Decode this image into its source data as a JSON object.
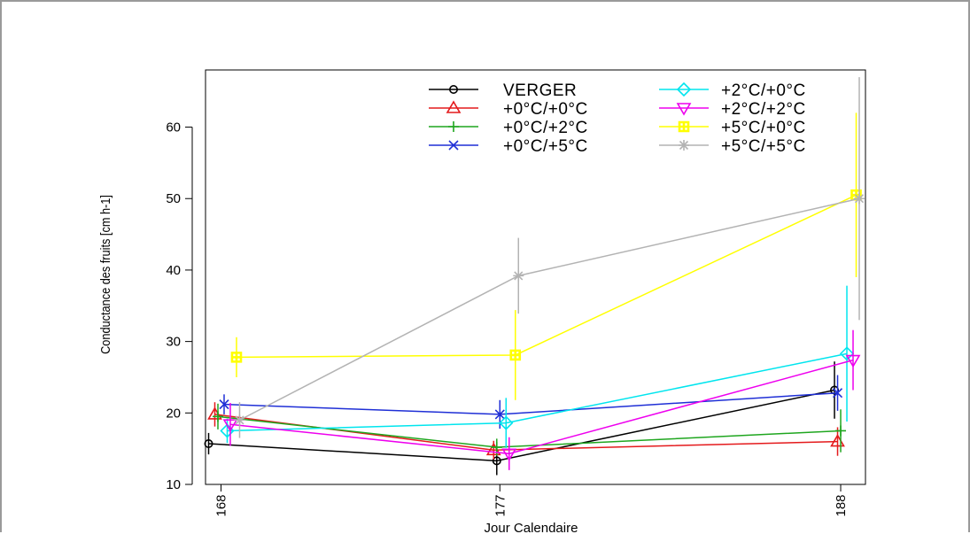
{
  "chart_data": {
    "type": "line",
    "title": "",
    "xlabel": "Jour Calendaire",
    "ylabel": "Conductance des fruits [cm h-1]",
    "x": [
      168,
      177,
      188
    ],
    "x_tick_labels": [
      "168",
      "177",
      "188"
    ],
    "y_ticks": [
      10,
      20,
      30,
      40,
      50,
      60
    ],
    "y_tick_labels": [
      "10",
      "20",
      "30",
      "40",
      "50",
      "60"
    ],
    "ylim": [
      10,
      68
    ],
    "xlim": [
      167.5,
      188.8
    ],
    "grid": false,
    "legend_position": "top-right",
    "series": [
      {
        "name": "VERGER",
        "color": "#000000",
        "marker": "circle",
        "x": [
          167.6,
          176.9,
          187.8
        ],
        "values": [
          15.7,
          13.3,
          23.2
        ],
        "errors": [
          1.5,
          2.0,
          4.0
        ]
      },
      {
        "name": "+0°C/+0°C",
        "color": "#e41a1c",
        "marker": "triangle-up",
        "x": [
          167.8,
          176.8,
          187.9
        ],
        "values": [
          19.8,
          14.8,
          16.0
        ],
        "errors": [
          1.7,
          1.3,
          2.0
        ]
      },
      {
        "name": "+0°C/+2°C",
        "color": "#1fa61f",
        "marker": "plus",
        "x": [
          167.9,
          176.9,
          188.0
        ],
        "values": [
          19.5,
          15.2,
          17.5
        ],
        "errors": [
          1.8,
          1.2,
          3.0
        ]
      },
      {
        "name": "+0°C/+5°C",
        "color": "#1f2fd6",
        "marker": "cross",
        "x": [
          168.1,
          177.0,
          187.9
        ],
        "values": [
          21.2,
          19.8,
          22.8
        ],
        "errors": [
          1.4,
          2.0,
          2.5
        ]
      },
      {
        "name": "+2°C/+0°C",
        "color": "#00e5ee",
        "marker": "diamond",
        "x": [
          168.2,
          177.2,
          188.2
        ],
        "values": [
          17.5,
          18.6,
          28.3
        ],
        "errors": [
          1.7,
          3.5,
          9.5
        ]
      },
      {
        "name": "+2°C/+2°C",
        "color": "#ee00ee",
        "marker": "triangle-down",
        "x": [
          168.3,
          177.3,
          188.4
        ],
        "values": [
          18.4,
          14.3,
          27.4
        ],
        "errors": [
          3.0,
          2.3,
          4.2
        ]
      },
      {
        "name": "+5°C/+0°C",
        "color": "#ffff00",
        "marker": "square-cross",
        "x": [
          168.5,
          177.5,
          188.5
        ],
        "values": [
          27.8,
          28.1,
          50.5
        ],
        "errors": [
          2.8,
          6.3,
          11.5
        ]
      },
      {
        "name": "+5°C/+5°C",
        "color": "#b3b3b3",
        "marker": "star",
        "x": [
          168.6,
          177.6,
          188.6
        ],
        "values": [
          19.0,
          39.2,
          50.0
        ],
        "errors": [
          2.5,
          5.3,
          17.0
        ]
      }
    ]
  }
}
